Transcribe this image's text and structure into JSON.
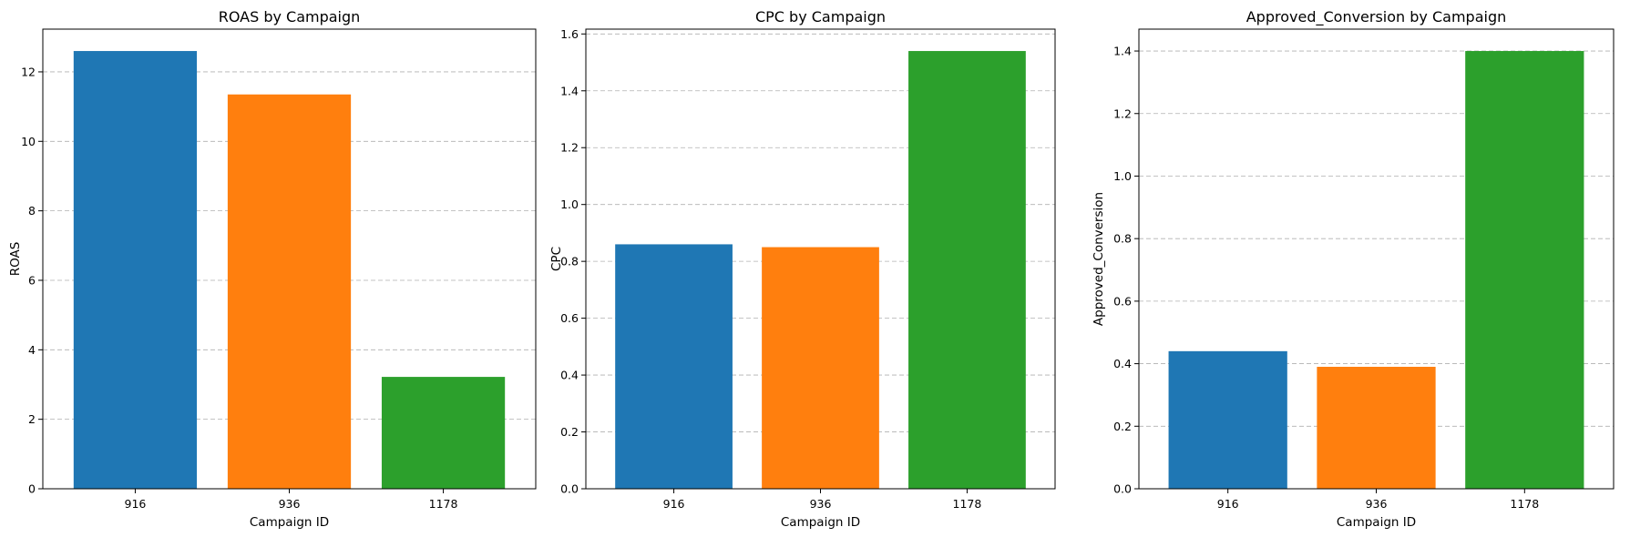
{
  "chart_data": [
    {
      "type": "bar",
      "title": "ROAS by Campaign",
      "xlabel": "Campaign ID",
      "ylabel": "ROAS",
      "categories": [
        "916",
        "936",
        "1178"
      ],
      "values": [
        12.6,
        11.35,
        3.22
      ],
      "ylim": [
        0,
        13.23
      ],
      "yticks": [
        0,
        2,
        4,
        6,
        8,
        10,
        12
      ],
      "ytick_labels": [
        "0",
        "2",
        "4",
        "6",
        "8",
        "10",
        "12"
      ],
      "grid": "y-dashed",
      "bar_colors": [
        "#1f77b4",
        "#ff7f0e",
        "#2ca02c"
      ]
    },
    {
      "type": "bar",
      "title": "CPC by Campaign",
      "xlabel": "Campaign ID",
      "ylabel": "CPC",
      "categories": [
        "916",
        "936",
        "1178"
      ],
      "values": [
        0.86,
        0.85,
        1.54
      ],
      "ylim": [
        0,
        1.617
      ],
      "yticks": [
        0,
        0.2,
        0.4,
        0.6,
        0.8,
        1.0,
        1.2,
        1.4,
        1.6
      ],
      "ytick_labels": [
        "0.0",
        "0.2",
        "0.4",
        "0.6",
        "0.8",
        "1.0",
        "1.2",
        "1.4",
        "1.6"
      ],
      "grid": "y-dashed",
      "bar_colors": [
        "#1f77b4",
        "#ff7f0e",
        "#2ca02c"
      ]
    },
    {
      "type": "bar",
      "title": "Approved_Conversion by Campaign",
      "xlabel": "Campaign ID",
      "ylabel": "Approved_Conversion",
      "categories": [
        "916",
        "936",
        "1178"
      ],
      "values": [
        0.44,
        0.39,
        1.4
      ],
      "ylim": [
        0,
        1.47
      ],
      "yticks": [
        0,
        0.2,
        0.4,
        0.6,
        0.8,
        1.0,
        1.2,
        1.4
      ],
      "ytick_labels": [
        "0.0",
        "0.2",
        "0.4",
        "0.6",
        "0.8",
        "1.0",
        "1.2",
        "1.4"
      ],
      "grid": "y-dashed",
      "bar_colors": [
        "#1f77b4",
        "#ff7f0e",
        "#2ca02c"
      ]
    }
  ]
}
